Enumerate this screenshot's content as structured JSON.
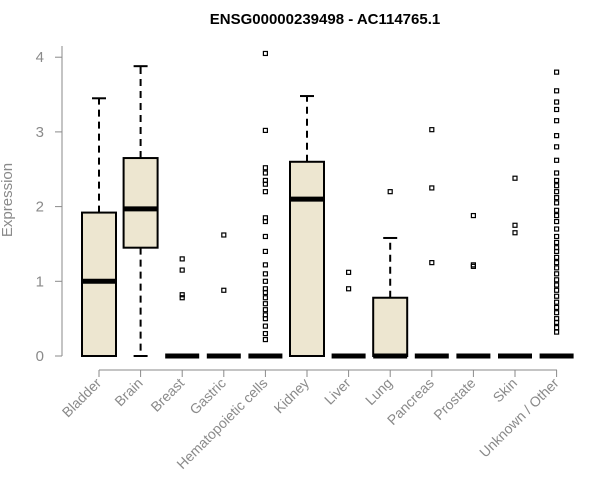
{
  "chart_data": {
    "type": "boxplot",
    "title": "ENSG00000239498 - AC114765.1",
    "xlabel": "",
    "ylabel": "Expression",
    "ylim": [
      0,
      4.15
    ],
    "yticks": [
      0,
      1,
      2,
      3,
      4
    ],
    "box_fill": "#ede6d0",
    "box_stroke": "#000000",
    "categories": [
      "Bladder",
      "Brain",
      "Breast",
      "Gastric",
      "Hematopoietic cells",
      "Kidney",
      "Liver",
      "Lung",
      "Pancreas",
      "Prostate",
      "Skin",
      "Unknown / Other"
    ],
    "boxes": [
      {
        "name": "Bladder",
        "q1": 0,
        "median": 1.0,
        "q3": 1.92,
        "whisker_low": 0,
        "whisker_high": 3.45,
        "outliers": []
      },
      {
        "name": "Brain",
        "q1": 1.45,
        "median": 1.97,
        "q3": 2.65,
        "whisker_low": 0,
        "whisker_high": 3.88,
        "outliers": []
      },
      {
        "name": "Breast",
        "q1": 0,
        "median": 0,
        "q3": 0,
        "whisker_low": 0,
        "whisker_high": 0,
        "outliers": [
          0.78,
          0.82,
          1.15,
          1.3
        ]
      },
      {
        "name": "Gastric",
        "q1": 0,
        "median": 0,
        "q3": 0,
        "whisker_low": 0,
        "whisker_high": 0,
        "outliers": [
          0.88,
          1.62
        ]
      },
      {
        "name": "Hematopoietic cells",
        "q1": 0,
        "median": 0,
        "q3": 0,
        "whisker_low": 0,
        "whisker_high": 0,
        "outliers": [
          0.22,
          0.3,
          0.4,
          0.5,
          0.55,
          0.62,
          0.7,
          0.78,
          0.85,
          0.9,
          1.0,
          1.1,
          1.22,
          1.4,
          1.6,
          1.8,
          1.85,
          2.2,
          2.3,
          2.35,
          2.45,
          2.52,
          3.02,
          4.05
        ]
      },
      {
        "name": "Kidney",
        "q1": 0,
        "median": 2.1,
        "q3": 2.6,
        "whisker_low": 0,
        "whisker_high": 3.48,
        "outliers": []
      },
      {
        "name": "Liver",
        "q1": 0,
        "median": 0,
        "q3": 0,
        "whisker_low": 0,
        "whisker_high": 0,
        "outliers": [
          0.9,
          1.12
        ]
      },
      {
        "name": "Lung",
        "q1": 0,
        "median": 0,
        "q3": 0.78,
        "whisker_low": 0,
        "whisker_high": 1.58,
        "outliers": [
          2.2
        ]
      },
      {
        "name": "Pancreas",
        "q1": 0,
        "median": 0,
        "q3": 0,
        "whisker_low": 0,
        "whisker_high": 0,
        "outliers": [
          1.25,
          2.25,
          3.03
        ]
      },
      {
        "name": "Prostate",
        "q1": 0,
        "median": 0,
        "q3": 0,
        "whisker_low": 0,
        "whisker_high": 0,
        "outliers": [
          1.2,
          1.22,
          1.88
        ]
      },
      {
        "name": "Skin",
        "q1": 0,
        "median": 0,
        "q3": 0,
        "whisker_low": 0,
        "whisker_high": 0,
        "outliers": [
          1.65,
          1.75,
          2.38
        ]
      },
      {
        "name": "Unknown / Other",
        "q1": 0,
        "median": 0,
        "q3": 0,
        "whisker_low": 0,
        "whisker_high": 0,
        "outliers": [
          0.32,
          0.38,
          0.45,
          0.5,
          0.58,
          0.65,
          0.72,
          0.8,
          0.88,
          0.95,
          1.02,
          1.1,
          1.18,
          1.25,
          1.32,
          1.4,
          1.45,
          1.52,
          1.6,
          1.7,
          1.8,
          1.88,
          1.95,
          2.05,
          2.12,
          2.2,
          2.28,
          2.35,
          2.45,
          2.62,
          2.8,
          2.95,
          3.15,
          3.3,
          3.4,
          3.55,
          3.8
        ]
      }
    ]
  }
}
